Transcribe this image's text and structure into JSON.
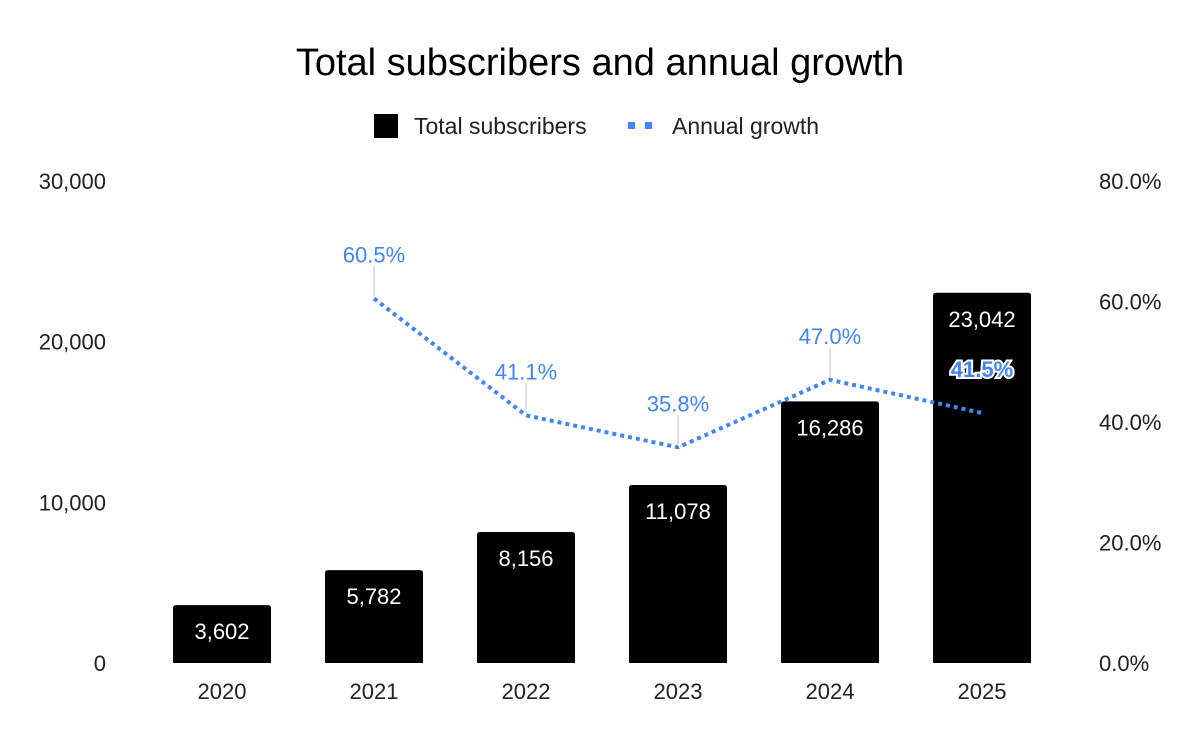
{
  "chart_data": {
    "type": "bar",
    "title": "Total subscribers and annual growth",
    "categories": [
      "2020",
      "2021",
      "2022",
      "2023",
      "2024",
      "2025"
    ],
    "series": [
      {
        "name": "Total subscribers",
        "type": "bar",
        "axis": "left",
        "color": "#000000",
        "values": [
          3602,
          5782,
          8156,
          11078,
          16286,
          23042
        ],
        "labels": [
          "3,602",
          "5,782",
          "8,156",
          "11,078",
          "16,286",
          "23,042"
        ]
      },
      {
        "name": "Annual growth",
        "type": "line",
        "axis": "right",
        "line_style": "dotted",
        "color": "#4285f4",
        "values": [
          null,
          60.5,
          41.1,
          35.8,
          47.0,
          41.5
        ],
        "labels": [
          "",
          "60.5%",
          "41.1%",
          "35.8%",
          "47.0%",
          "41.5%"
        ]
      }
    ],
    "y_left": {
      "ylim": [
        0,
        30000
      ],
      "ticks": [
        "0",
        "10,000",
        "20,000",
        "30,000"
      ]
    },
    "y_right": {
      "ylim": [
        0,
        80
      ],
      "ticks": [
        "0.0%",
        "20.0%",
        "40.0%",
        "60.0%",
        "80.0%"
      ]
    },
    "legend_position": "top-center",
    "grid": false
  }
}
